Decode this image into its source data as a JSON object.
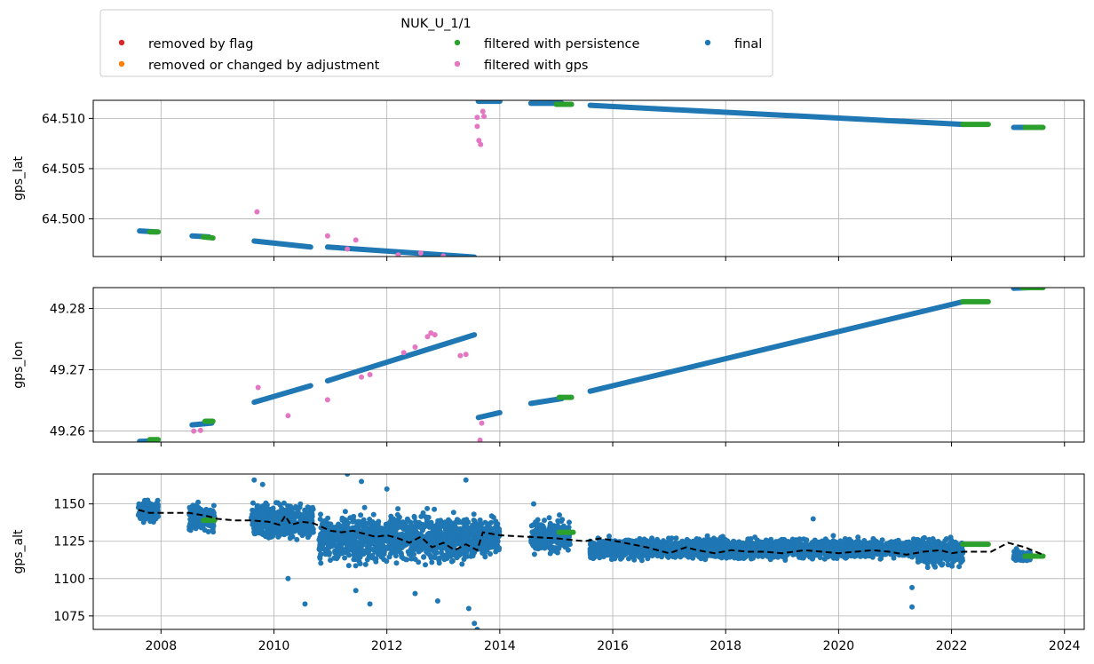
{
  "chart_data": {
    "type": "scatter",
    "legend": {
      "title": "NUK_U_1/1",
      "placement": "top",
      "entries": [
        {
          "name": "removed by flag",
          "color": "#d62728"
        },
        {
          "name": "removed or changed by adjustment",
          "color": "#ff7f0e"
        },
        {
          "name": "filtered with persistence",
          "color": "#2ca02c"
        },
        {
          "name": "filtered with gps",
          "color": "#e377c2"
        },
        {
          "name": "final",
          "color": "#1f77b4"
        }
      ]
    },
    "x_axis": {
      "range": [
        2006.8,
        2024.35
      ],
      "ticks": [
        2008,
        2010,
        2012,
        2014,
        2016,
        2018,
        2020,
        2022,
        2024
      ],
      "tick_labels": [
        "2008",
        "2010",
        "2012",
        "2014",
        "2016",
        "2018",
        "2020",
        "2022",
        "2024"
      ]
    },
    "panels": [
      {
        "ylabel": "gps_lat",
        "ylim": [
          64.49625,
          64.5118
        ],
        "yticks": [
          64.5,
          64.505,
          64.51
        ],
        "ytick_labels": [
          "64.500",
          "64.505",
          "64.510"
        ],
        "grid": true,
        "final_segments": [
          [
            2007.62,
            64.4988,
            2007.92,
            64.4987
          ],
          [
            2008.55,
            64.4983,
            2008.85,
            64.4982
          ],
          [
            2009.65,
            64.4978,
            2010.65,
            64.4972
          ],
          [
            2010.95,
            64.4972,
            2013.55,
            64.4962
          ],
          [
            2013.62,
            64.5117,
            2014.0,
            64.5117
          ],
          [
            2014.55,
            64.5115,
            2015.1,
            64.5115
          ],
          [
            2015.6,
            64.5113,
            2022.2,
            64.5094
          ],
          [
            2023.1,
            64.5091,
            2023.4,
            64.5091
          ]
        ],
        "persistence_segments": [
          [
            2007.8,
            64.4987,
            2007.95,
            64.4987
          ],
          [
            2008.75,
            64.4982,
            2008.92,
            64.4981
          ],
          [
            2015.0,
            64.5114,
            2015.27,
            64.5114
          ],
          [
            2022.2,
            64.5094,
            2022.65,
            64.5094
          ],
          [
            2023.3,
            64.5091,
            2023.62,
            64.5091
          ]
        ],
        "gps_points": [
          [
            2009.7,
            64.5007
          ],
          [
            2010.95,
            64.4983
          ],
          [
            2011.45,
            64.4979
          ],
          [
            2013.6,
            64.5092
          ],
          [
            2013.63,
            64.5078
          ],
          [
            2013.66,
            64.5074
          ],
          [
            2013.7,
            64.5107
          ],
          [
            2013.72,
            64.5102
          ],
          [
            2013.6,
            64.5101
          ],
          [
            2012.2,
            64.4964
          ],
          [
            2011.3,
            64.497
          ],
          [
            2012.6,
            64.4966
          ],
          [
            2013.0,
            64.4963
          ]
        ]
      },
      {
        "ylabel": "gps_lon",
        "ylim": [
          49.2582,
          49.2834
        ],
        "yticks": [
          49.26,
          49.27,
          49.28
        ],
        "ytick_labels": [
          "49.26",
          "49.27",
          "49.28"
        ],
        "grid": true,
        "final_segments": [
          [
            2007.62,
            49.2583,
            2007.92,
            49.2584
          ],
          [
            2008.55,
            49.261,
            2008.9,
            49.2613
          ],
          [
            2009.65,
            49.2647,
            2010.65,
            49.2674
          ],
          [
            2010.95,
            49.2682,
            2013.55,
            49.2757
          ],
          [
            2013.62,
            49.2622,
            2014.0,
            49.263
          ],
          [
            2014.55,
            49.2645,
            2015.1,
            49.2653
          ],
          [
            2015.6,
            49.2665,
            2022.2,
            49.2811
          ],
          [
            2023.1,
            49.2833,
            2023.4,
            49.2834
          ]
        ],
        "persistence_segments": [
          [
            2007.8,
            49.2586,
            2007.95,
            49.2586
          ],
          [
            2008.78,
            49.2616,
            2008.92,
            49.2616
          ],
          [
            2015.05,
            49.2655,
            2015.27,
            49.2655
          ],
          [
            2022.2,
            49.2811,
            2022.65,
            49.2811
          ],
          [
            2023.25,
            49.2834,
            2023.62,
            49.2834
          ]
        ],
        "gps_points": [
          [
            2008.58,
            49.26
          ],
          [
            2008.7,
            49.2601
          ],
          [
            2009.72,
            49.2671
          ],
          [
            2010.25,
            49.2625
          ],
          [
            2010.95,
            49.2651
          ],
          [
            2011.55,
            49.2688
          ],
          [
            2011.7,
            49.2692
          ],
          [
            2012.72,
            49.2754
          ],
          [
            2012.78,
            49.276
          ],
          [
            2012.85,
            49.2757
          ],
          [
            2013.3,
            49.2723
          ],
          [
            2013.4,
            49.2725
          ],
          [
            2013.65,
            49.2585
          ],
          [
            2013.68,
            49.2613
          ],
          [
            2012.3,
            49.2728
          ],
          [
            2012.5,
            49.2737
          ]
        ]
      },
      {
        "ylabel": "gps_alt",
        "ylim": [
          1066,
          1170
        ],
        "yticks": [
          1075,
          1100,
          1125,
          1150
        ],
        "ytick_labels": [
          "1075",
          "1100",
          "1125",
          "1150"
        ],
        "grid": true,
        "final_clusters": [
          {
            "x": [
              2007.6,
              2007.95
            ],
            "center": 1145,
            "spread": 10
          },
          {
            "x": [
              2008.5,
              2008.95
            ],
            "center": 1141,
            "spread": 12
          },
          {
            "x": [
              2009.6,
              2010.7
            ],
            "center": 1138,
            "spread": 16
          },
          {
            "x": [
              2010.8,
              2013.6
            ],
            "center": 1127,
            "spread": 22
          },
          {
            "x": [
              2013.6,
              2014.0
            ],
            "center": 1128,
            "spread": 16
          },
          {
            "x": [
              2014.55,
              2015.25
            ],
            "center": 1128,
            "spread": 16
          },
          {
            "x": [
              2015.6,
              2021.4
            ],
            "center": 1120,
            "spread": 9
          },
          {
            "x": [
              2021.4,
              2022.2
            ],
            "center": 1118,
            "spread": 13
          },
          {
            "x": [
              2023.1,
              2023.4
            ],
            "center": 1115,
            "spread": 5
          }
        ],
        "outliers": [
          [
            2009.65,
            1166
          ],
          [
            2009.8,
            1163
          ],
          [
            2010.55,
            1083
          ],
          [
            2010.25,
            1100
          ],
          [
            2011.55,
            1165
          ],
          [
            2011.45,
            1092
          ],
          [
            2011.7,
            1083
          ],
          [
            2012.0,
            1160
          ],
          [
            2012.5,
            1090
          ],
          [
            2012.9,
            1085
          ],
          [
            2013.4,
            1166
          ],
          [
            2013.55,
            1070
          ],
          [
            2013.6,
            1066
          ],
          [
            2013.45,
            1080
          ],
          [
            2011.3,
            1170
          ],
          [
            2019.55,
            1140
          ],
          [
            2021.3,
            1081
          ],
          [
            2021.3,
            1094
          ],
          [
            2023.15,
            1120
          ],
          [
            2014.6,
            1150
          ]
        ],
        "persistence_segments": [
          [
            2008.75,
            1139,
            2008.95,
            1139
          ],
          [
            2015.05,
            1131,
            2015.3,
            1131
          ],
          [
            2022.2,
            1123,
            2022.65,
            1123
          ],
          [
            2023.3,
            1115,
            2023.62,
            1115
          ]
        ],
        "smooth_line": {
          "color": "#000000",
          "style": "dashed",
          "x": [
            2007.6,
            2007.8,
            2008.0,
            2008.5,
            2008.8,
            2009.0,
            2009.3,
            2009.6,
            2009.9,
            2010.1,
            2010.2,
            2010.3,
            2010.5,
            2010.7,
            2011.0,
            2011.2,
            2011.4,
            2011.6,
            2011.8,
            2012.0,
            2012.2,
            2012.4,
            2012.6,
            2012.8,
            2013.0,
            2013.2,
            2013.4,
            2013.6,
            2013.7,
            2014.0,
            2014.5,
            2015.0,
            2015.5,
            2015.8,
            2016.2,
            2016.6,
            2017.0,
            2017.3,
            2017.5,
            2017.8,
            2018.1,
            2018.4,
            2018.7,
            2019.0,
            2019.4,
            2019.7,
            2020.0,
            2020.3,
            2020.6,
            2020.9,
            2021.2,
            2021.5,
            2021.8,
            2022.0,
            2022.2,
            2022.7,
            2023.0,
            2023.3,
            2023.62
          ],
          "y": [
            1146,
            1144,
            1144,
            1144,
            1142,
            1140,
            1139,
            1139,
            1138,
            1136,
            1142,
            1136,
            1138,
            1137,
            1132,
            1131,
            1132,
            1130,
            1128,
            1129,
            1127,
            1124,
            1128,
            1121,
            1124,
            1119,
            1123,
            1119,
            1131,
            1129,
            1128,
            1127,
            1125,
            1127,
            1124,
            1121,
            1117,
            1121,
            1119,
            1117,
            1119,
            1118,
            1118,
            1117,
            1119,
            1118,
            1117,
            1118,
            1119,
            1118,
            1116,
            1118,
            1119,
            1117,
            1118,
            1118,
            1124,
            1121,
            1116
          ]
        }
      }
    ]
  }
}
